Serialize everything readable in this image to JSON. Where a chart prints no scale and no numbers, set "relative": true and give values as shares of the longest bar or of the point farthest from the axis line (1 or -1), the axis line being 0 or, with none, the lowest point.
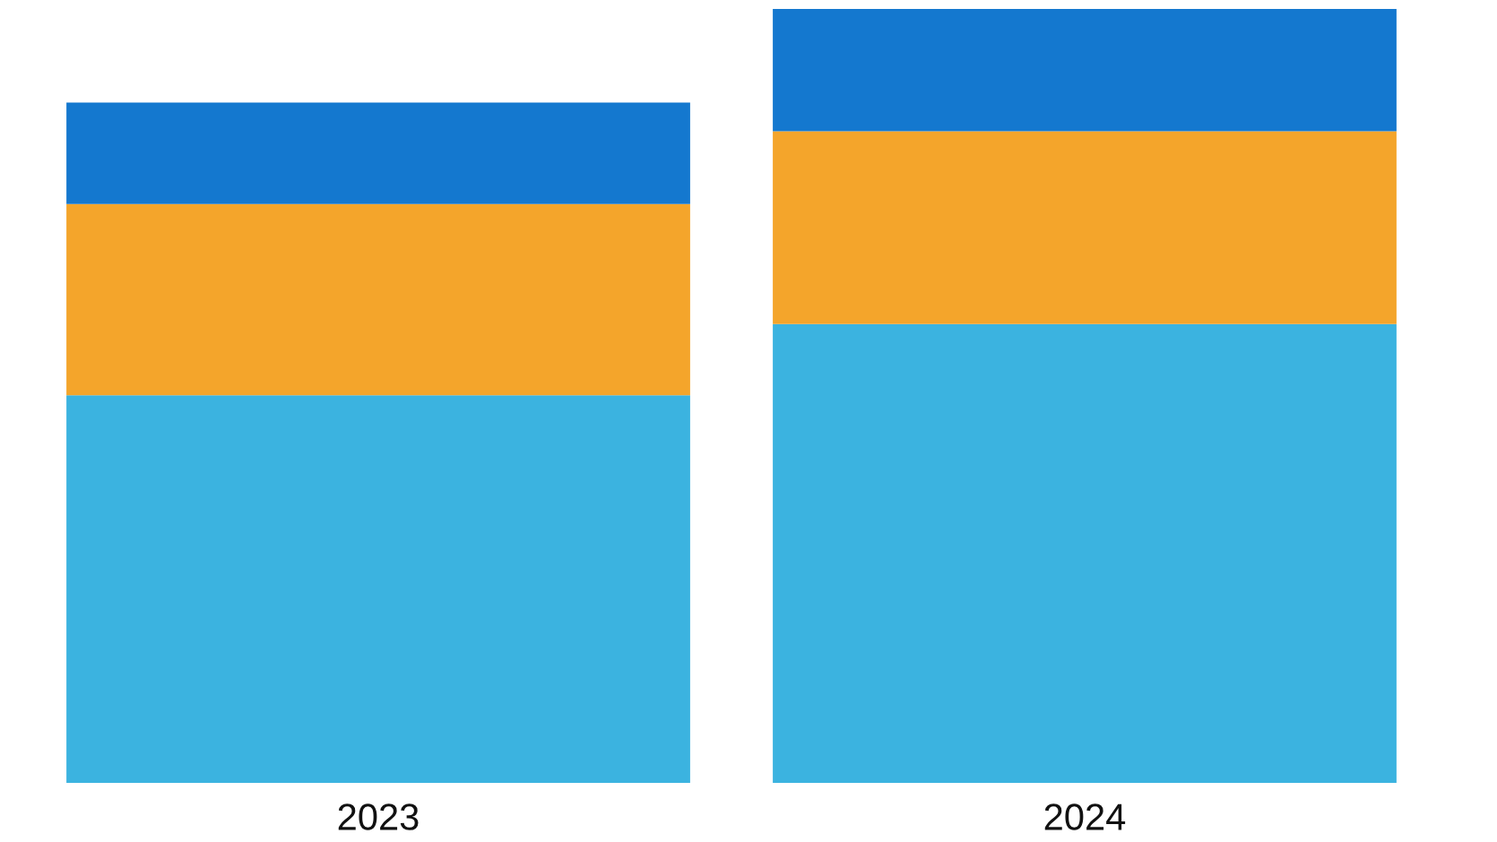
{
  "chart_data": {
    "type": "bar",
    "stacked": true,
    "relative": true,
    "categories": [
      "2023",
      "2024"
    ],
    "series": [
      {
        "color": "#3bb3e0",
        "values": [
          0.501,
          0.593
        ]
      },
      {
        "color": "#f4a52b",
        "values": [
          0.247,
          0.249
        ]
      },
      {
        "color": "#1478cf",
        "values": [
          0.131,
          0.158
        ]
      }
    ]
  }
}
